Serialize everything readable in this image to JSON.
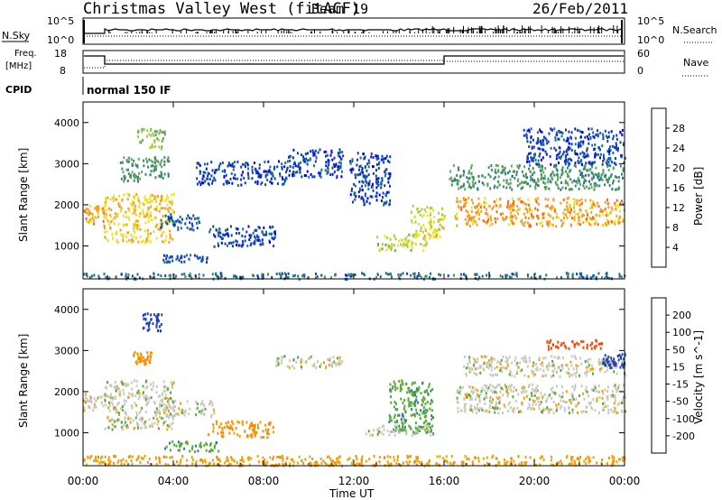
{
  "header": {
    "station": "Christmas Valley West (fitACF)",
    "beam": "Beam 19",
    "date": "26/Feb/2011"
  },
  "nsky_panel": {
    "left_label": "N.Sky",
    "right_label": "N.Search",
    "tick_top": "10^5",
    "tick_bottom": "10^0"
  },
  "freq_panel": {
    "left_label_1": "Freq.",
    "left_label_2": "[MHz]",
    "right_label": "Nave",
    "left_ticks": [
      "18",
      "8"
    ],
    "right_ticks": [
      "60",
      "0"
    ]
  },
  "cpid_panel": {
    "label": "CPID",
    "program": "normal 150 IF"
  },
  "colors": {
    "power_scale": [
      "#0000ff",
      "#0b3fbf",
      "#1f6e8c",
      "#3a8a6a",
      "#62a85a",
      "#a8cc3a",
      "#f0e020",
      "#f5a020",
      "#ff6010",
      "#ff2000"
    ],
    "velocity_scale": [
      "#1a1aff",
      "#2040c0",
      "#2a7aa0",
      "#55aa33",
      "#c8c8c0",
      "#f2a000",
      "#ff8800",
      "#ff4400",
      "#ff1100"
    ]
  },
  "chart_data": [
    {
      "type": "heatmap",
      "name": "power",
      "ylabel": "Slant Range [km]",
      "y_ticks": [
        "1000",
        "2000",
        "3000",
        "4000"
      ],
      "ylim": [
        200,
        4500
      ],
      "xlim": [
        0,
        24
      ],
      "colorbar_label": "Power [dB]",
      "colorbar_ticks": [
        "4",
        "8",
        "12",
        "16",
        "20",
        "24",
        "28"
      ],
      "colorbar_range": [
        0,
        32
      ],
      "regions": [
        {
          "t0": 0.0,
          "t1": 1.0,
          "r0": 1550,
          "r1": 2000,
          "v": 24
        },
        {
          "t0": 0.9,
          "t1": 4.0,
          "r0": 1100,
          "r1": 2300,
          "v": 22
        },
        {
          "t0": 1.6,
          "t1": 3.8,
          "r0": 2600,
          "r1": 3200,
          "v": 12
        },
        {
          "t0": 2.4,
          "t1": 3.6,
          "r0": 3400,
          "r1": 3900,
          "v": 16
        },
        {
          "t0": 3.4,
          "t1": 5.2,
          "r0": 1400,
          "r1": 1800,
          "v": 6
        },
        {
          "t0": 3.5,
          "t1": 5.5,
          "r0": 600,
          "r1": 800,
          "v": 6
        },
        {
          "t0": 5.5,
          "t1": 8.5,
          "r0": 1000,
          "r1": 1500,
          "v": 5
        },
        {
          "t0": 5.0,
          "t1": 9.0,
          "r0": 2500,
          "r1": 3100,
          "v": 5
        },
        {
          "t0": 9.0,
          "t1": 11.5,
          "r0": 2700,
          "r1": 3400,
          "v": 5
        },
        {
          "t0": 11.8,
          "t1": 13.6,
          "r0": 2000,
          "r1": 3300,
          "v": 5
        },
        {
          "t0": 13.0,
          "t1": 15.2,
          "r0": 900,
          "r1": 1300,
          "v": 18
        },
        {
          "t0": 14.5,
          "t1": 16.0,
          "r0": 1200,
          "r1": 2000,
          "v": 20
        },
        {
          "t0": 16.2,
          "t1": 24.0,
          "r0": 2400,
          "r1": 3000,
          "v": 12
        },
        {
          "t0": 16.4,
          "t1": 24.0,
          "r0": 1500,
          "r1": 2200,
          "v": 24
        },
        {
          "t0": 19.5,
          "t1": 24.0,
          "r0": 3000,
          "r1": 3900,
          "v": 5
        },
        {
          "t0": 0.0,
          "t1": 24.0,
          "r0": 200,
          "r1": 350,
          "v": 8
        }
      ]
    },
    {
      "type": "heatmap",
      "name": "velocity",
      "ylabel": "Slant Range [km]",
      "y_ticks": [
        "1000",
        "2000",
        "3000",
        "4000"
      ],
      "ylim": [
        200,
        4500
      ],
      "xlim": [
        0,
        24
      ],
      "colorbar_label": "Velocity [m s^-1]",
      "colorbar_ticks": [
        "200",
        "100",
        "50",
        "15",
        "-15",
        "-50",
        "-100",
        "-200"
      ],
      "colorbar_range": [
        -250,
        250
      ],
      "regions": [
        {
          "t0": 0.0,
          "t1": 1.0,
          "r0": 1550,
          "r1": 2000,
          "v": 0
        },
        {
          "t0": 0.9,
          "t1": 4.0,
          "r0": 1100,
          "r1": 2300,
          "v": 0
        },
        {
          "t0": 2.2,
          "t1": 3.0,
          "r0": 2700,
          "r1": 3000,
          "v": -60
        },
        {
          "t0": 2.6,
          "t1": 3.5,
          "r0": 3500,
          "r1": 3950,
          "v": 180
        },
        {
          "t0": 3.2,
          "t1": 5.8,
          "r0": 1400,
          "r1": 1800,
          "v": 0
        },
        {
          "t0": 3.5,
          "t1": 6.0,
          "r0": 550,
          "r1": 800,
          "v": 40
        },
        {
          "t0": 5.5,
          "t1": 8.5,
          "r0": 900,
          "r1": 1300,
          "v": -60
        },
        {
          "t0": 8.5,
          "t1": 11.5,
          "r0": 2600,
          "r1": 2900,
          "v": 0
        },
        {
          "t0": 13.5,
          "t1": 15.5,
          "r0": 1000,
          "r1": 2300,
          "v": 40
        },
        {
          "t0": 12.5,
          "t1": 15.5,
          "r0": 950,
          "r1": 1200,
          "v": 0
        },
        {
          "t0": 16.5,
          "t1": 24.0,
          "r0": 1500,
          "r1": 2200,
          "v": 0
        },
        {
          "t0": 16.8,
          "t1": 24.0,
          "r0": 2400,
          "r1": 2900,
          "v": 0
        },
        {
          "t0": 20.5,
          "t1": 23.0,
          "r0": 3050,
          "r1": 3300,
          "v": -180
        },
        {
          "t0": 23.0,
          "t1": 24.0,
          "r0": 2600,
          "r1": 3000,
          "v": 180
        },
        {
          "t0": 0.0,
          "t1": 24.0,
          "r0": 200,
          "r1": 450,
          "v": -40
        }
      ]
    }
  ],
  "xaxis": {
    "label": "Time UT",
    "ticks": [
      "00:00",
      "04:00",
      "08:00",
      "12:00",
      "16:00",
      "20:00",
      "00:00"
    ]
  }
}
